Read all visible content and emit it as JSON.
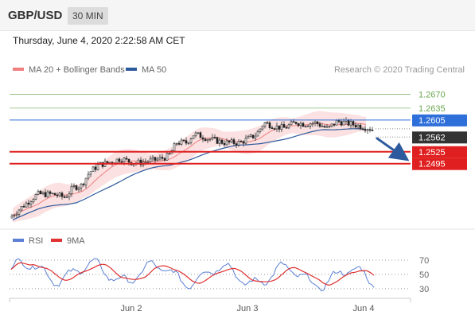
{
  "header": {
    "symbol": "GBP/USD",
    "timeframe": "30 MIN"
  },
  "timestamp": "Thursday, June 4, 2020 2:22:58 AM CET",
  "legend": {
    "ma_bb": {
      "label": "MA 20 + Bollinger Bands",
      "color": "#f08080"
    },
    "ma50": {
      "label": "MA 50",
      "color": "#2d5a9c"
    },
    "rsi": {
      "label": "RSI",
      "color": "#5b7fd4"
    },
    "ma9": {
      "label": "9MA",
      "color": "#e03030"
    }
  },
  "copyright": "Research © 2020 Trading Central",
  "chart_data": [
    {
      "type": "candlestick",
      "y_range": [
        1.234,
        1.2705
      ],
      "x_labels": [
        "Jun 2",
        "Jun 3",
        "Jun 4"
      ],
      "last_price": 1.2562,
      "levels": [
        {
          "price": 1.267,
          "label": "1.2670",
          "kind": "resistance"
        },
        {
          "price": 1.2635,
          "label": "1.2635",
          "kind": "resistance"
        },
        {
          "price": 1.2605,
          "label": "1.2605",
          "kind": "pivot"
        },
        {
          "price": 1.2562,
          "label": "1.2562",
          "kind": "last"
        },
        {
          "price": 1.2525,
          "label": "1.2525",
          "kind": "support"
        },
        {
          "price": 1.2495,
          "label": "1.2495",
          "kind": "support"
        }
      ],
      "colors": {
        "resistance": "#6aa84f",
        "pivot": "#2e6fd9",
        "support": "#e02020",
        "last": "#333333"
      },
      "series": [
        {
          "name": "MA 50",
          "values": [
            1.2355,
            1.2362,
            1.2372,
            1.2384,
            1.2398,
            1.2413,
            1.243,
            1.2447,
            1.2463,
            1.2477,
            1.2488,
            1.2497,
            1.2505,
            1.2512,
            1.252,
            1.2528,
            1.2537,
            1.2546,
            1.2555,
            1.2563,
            1.2571,
            1.2578,
            1.2584,
            1.259,
            1.2594,
            1.2596,
            1.2595
          ]
        },
        {
          "name": "MA 20",
          "values": [
            1.238,
            1.2396,
            1.2408,
            1.242,
            1.244,
            1.2465,
            1.2488,
            1.25,
            1.2507,
            1.2515,
            1.2528,
            1.2545,
            1.2556,
            1.2565,
            1.2572,
            1.2579,
            1.2586,
            1.2592,
            1.2597,
            1.2601,
            1.2604,
            1.2605,
            1.2602,
            1.2598,
            1.2594,
            1.259,
            1.2585
          ]
        }
      ]
    },
    {
      "type": "line",
      "name": "RSI",
      "y_range": [
        22,
        80
      ],
      "ticks": [
        30,
        50,
        70
      ],
      "dotted_levels": [
        30,
        50,
        70
      ]
    }
  ]
}
